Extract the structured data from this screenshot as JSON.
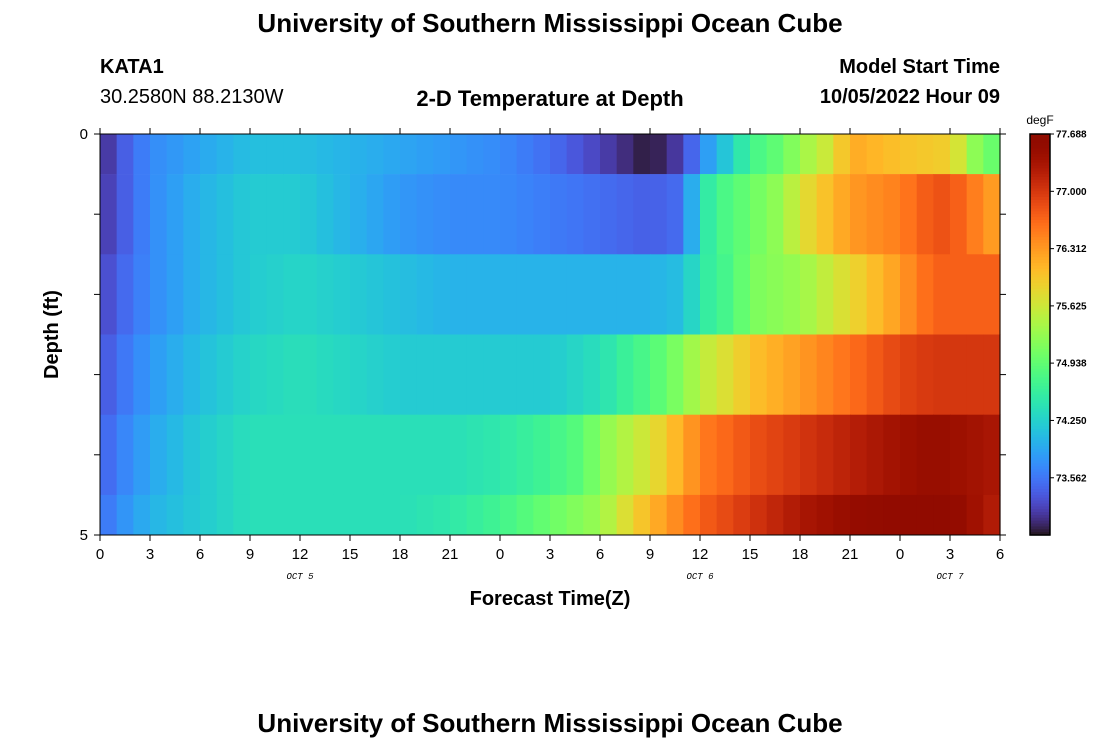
{
  "header": {
    "title": "University of Southern Mississippi Ocean Cube",
    "station_id": "KATA1",
    "station_coords": "30.2580N  88.2130W",
    "plot_title": "2-D Temperature at Depth",
    "model_start_label": "Model Start Time",
    "model_start_value": "10/05/2022 Hour 09"
  },
  "footer": {
    "title": "University of Southern Mississippi Ocean Cube"
  },
  "chart_data": {
    "type": "heatmap",
    "title": "2-D Temperature at Depth",
    "xlabel": "Forecast Time(Z)",
    "ylabel": "Depth (ft)",
    "x_tick_labels": [
      "0",
      "3",
      "6",
      "9",
      "12",
      "15",
      "18",
      "21",
      "0",
      "3",
      "6",
      "9",
      "12",
      "15",
      "18",
      "21",
      "0",
      "3",
      "6"
    ],
    "x_date_labels": [
      {
        "text": "OCT 5",
        "at_tick": 4
      },
      {
        "text": "OCT 6",
        "at_tick": 12
      },
      {
        "text": "OCT 7",
        "at_tick": 17
      }
    ],
    "y_tick_labels": [
      "0",
      "5"
    ],
    "ylim": [
      0,
      5
    ],
    "x_hours_range": [
      0,
      54
    ],
    "colorbar": {
      "unit": "degF",
      "min": 72.875,
      "max": 77.688,
      "tick_labels": [
        "77.688",
        "77.000",
        "76.312",
        "75.625",
        "74.938",
        "74.250",
        "73.562"
      ],
      "tick_values": [
        77.688,
        77.0,
        76.312,
        75.625,
        74.938,
        74.25,
        73.562
      ]
    },
    "depth_bins_ft": [
      0,
      1,
      2,
      3,
      4,
      5
    ],
    "layers": [
      {
        "depth_ft": "0-0.5",
        "hour_knots": [
          0,
          1,
          3,
          6,
          9,
          12,
          15,
          18,
          21,
          24,
          27,
          30,
          33,
          35,
          36,
          38,
          39,
          41,
          42,
          44,
          45,
          48,
          51,
          53,
          54
        ],
        "temp_knots": [
          73.0,
          73.3,
          73.7,
          73.9,
          74.1,
          74.1,
          74.0,
          73.9,
          73.8,
          73.7,
          73.5,
          73.2,
          72.9,
          73.2,
          73.7,
          74.3,
          74.7,
          75.0,
          75.3,
          75.7,
          76.2,
          76.0,
          75.9,
          75.0,
          75.0
        ]
      },
      {
        "depth_ft": "0.5-1.5",
        "hour_knots": [
          0,
          1,
          3,
          6,
          9,
          12,
          15,
          18,
          21,
          24,
          27,
          30,
          33,
          35,
          36,
          37,
          39,
          41,
          42,
          45,
          48,
          50,
          51,
          54
        ],
        "temp_knots": [
          73.1,
          73.3,
          73.7,
          74.0,
          74.2,
          74.2,
          74.0,
          73.8,
          73.7,
          73.7,
          73.6,
          73.5,
          73.4,
          73.5,
          74.4,
          74.7,
          75.0,
          75.3,
          75.7,
          76.3,
          76.5,
          76.8,
          76.8,
          76.2
        ]
      },
      {
        "depth_ft": "1.5-2.5",
        "hour_knots": [
          0,
          1,
          3,
          6,
          9,
          12,
          15,
          18,
          21,
          24,
          27,
          30,
          33,
          35,
          36,
          38,
          39,
          42,
          45,
          48,
          50,
          54
        ],
        "temp_knots": [
          73.2,
          73.4,
          73.7,
          74.0,
          74.2,
          74.3,
          74.2,
          74.1,
          74.0,
          74.0,
          74.0,
          74.0,
          74.0,
          74.1,
          74.5,
          74.8,
          75.1,
          75.3,
          75.8,
          76.3,
          76.7,
          76.7
        ]
      },
      {
        "depth_ft": "2.5-3.5",
        "hour_knots": [
          0,
          1,
          3,
          6,
          9,
          12,
          15,
          18,
          21,
          24,
          27,
          30,
          32,
          33,
          35,
          36,
          38,
          39,
          42,
          45,
          48,
          50,
          54
        ],
        "temp_knots": [
          73.3,
          73.5,
          73.8,
          74.1,
          74.3,
          74.4,
          74.3,
          74.2,
          74.2,
          74.2,
          74.2,
          74.4,
          74.7,
          74.8,
          75.2,
          75.5,
          75.8,
          76.0,
          76.3,
          76.6,
          76.9,
          77.0,
          77.0
        ]
      },
      {
        "depth_ft": "3.5-4.5",
        "hour_knots": [
          0,
          1,
          3,
          6,
          9,
          12,
          15,
          18,
          21,
          24,
          27,
          29,
          30,
          33,
          35,
          36,
          39,
          42,
          45,
          48,
          50,
          54
        ],
        "temp_knots": [
          73.4,
          73.6,
          73.9,
          74.2,
          74.4,
          74.4,
          74.4,
          74.4,
          74.4,
          74.5,
          74.7,
          74.9,
          75.2,
          75.7,
          76.2,
          76.5,
          76.8,
          77.0,
          77.2,
          77.4,
          77.5,
          77.3
        ]
      },
      {
        "depth_ft": "4.5-5",
        "hour_knots": [
          0,
          1,
          3,
          6,
          9,
          12,
          15,
          18,
          21,
          24,
          26,
          27,
          30,
          31,
          33,
          35,
          36,
          39,
          42,
          45,
          48,
          51,
          54
        ],
        "temp_knots": [
          73.5,
          73.7,
          74.0,
          74.2,
          74.4,
          74.4,
          74.4,
          74.4,
          74.5,
          74.7,
          74.9,
          75.0,
          75.3,
          75.6,
          76.1,
          76.5,
          76.7,
          77.0,
          77.3,
          77.5,
          77.6,
          77.6,
          77.2
        ]
      }
    ]
  }
}
